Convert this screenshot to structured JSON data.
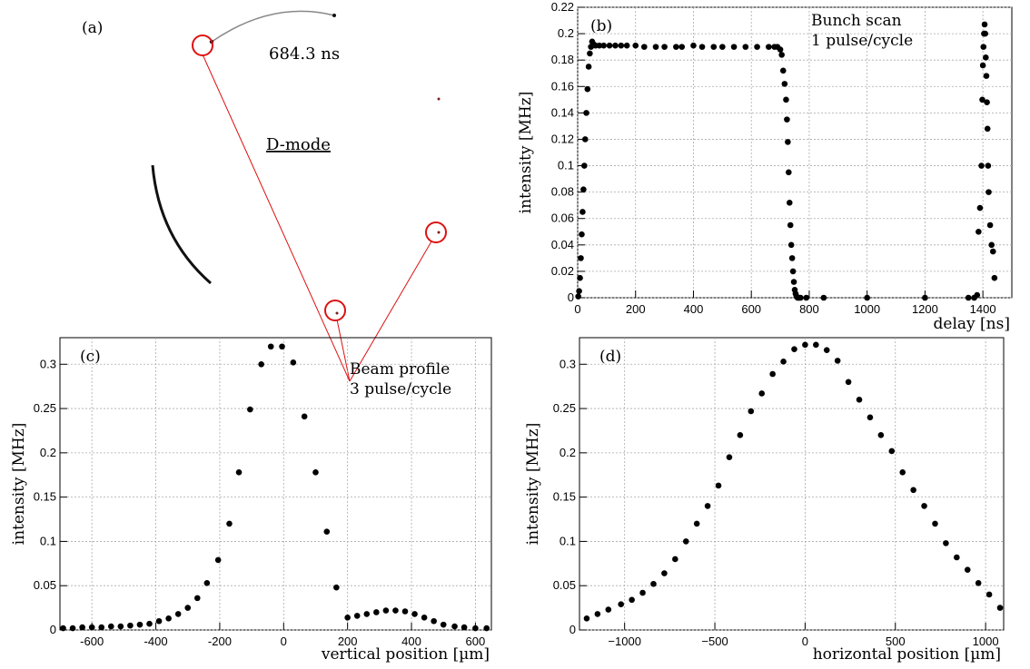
{
  "panel_a": {
    "label": "(a)",
    "time_label": "684.3 ns",
    "mode_label": "D-mode",
    "highlight_color": "#dd1111"
  },
  "chart_data": [
    {
      "id": "b",
      "type": "scatter",
      "panel_label": "(b)",
      "xlabel": "delay [ns]",
      "ylabel": "intensity [MHz]",
      "annotation": [
        "Bunch scan",
        "1 pulse/cycle"
      ],
      "xlim": [
        0,
        1500
      ],
      "ylim": [
        0,
        0.22
      ],
      "xticks": [
        0,
        200,
        400,
        600,
        800,
        1000,
        1200,
        1400
      ],
      "xtick_labels": [
        "0",
        "200",
        "400",
        "600",
        "800",
        "1000",
        "1200",
        "1400"
      ],
      "yticks": [
        0,
        0.02,
        0.04,
        0.06,
        0.08,
        0.1,
        0.12,
        0.14,
        0.16,
        0.18,
        0.2,
        0.22
      ],
      "ytick_labels": [
        "0",
        "0.02",
        "0.04",
        "0.06",
        "0.08",
        "0.1",
        "0.12",
        "0.14",
        "0.16",
        "0.18",
        "0.2",
        "0.22"
      ],
      "grid": true,
      "x": [
        2,
        5,
        8,
        11,
        14,
        17,
        20,
        23,
        26,
        30,
        34,
        38,
        42,
        46,
        50,
        55,
        62,
        75,
        90,
        110,
        130,
        150,
        170,
        200,
        230,
        270,
        300,
        340,
        360,
        400,
        430,
        470,
        500,
        540,
        580,
        620,
        660,
        680,
        690,
        700,
        705,
        710,
        715,
        720,
        723,
        726,
        729,
        732,
        735,
        738,
        741,
        744,
        747,
        750,
        753,
        756,
        760,
        765,
        770,
        790,
        850,
        1000,
        1200,
        1350,
        1370,
        1380,
        1385,
        1390,
        1395,
        1398,
        1400,
        1402,
        1404,
        1406,
        1408,
        1410,
        1412,
        1414,
        1416,
        1418,
        1420,
        1425,
        1430,
        1435,
        1440
      ],
      "y": [
        0.001,
        0.005,
        0.015,
        0.03,
        0.048,
        0.065,
        0.082,
        0.1,
        0.12,
        0.14,
        0.158,
        0.175,
        0.185,
        0.19,
        0.194,
        0.192,
        0.191,
        0.191,
        0.191,
        0.191,
        0.191,
        0.191,
        0.191,
        0.191,
        0.19,
        0.19,
        0.19,
        0.19,
        0.19,
        0.191,
        0.19,
        0.19,
        0.19,
        0.19,
        0.19,
        0.19,
        0.19,
        0.19,
        0.19,
        0.188,
        0.184,
        0.172,
        0.162,
        0.15,
        0.135,
        0.118,
        0.095,
        0.072,
        0.055,
        0.04,
        0.03,
        0.02,
        0.012,
        0.006,
        0.003,
        0.001,
        0.0,
        0.0,
        0.0,
        0.0,
        0.0,
        0.0,
        0.0,
        0.0,
        0.0,
        0.002,
        0.05,
        0.068,
        0.1,
        0.15,
        0.176,
        0.19,
        0.2,
        0.207,
        0.2,
        0.182,
        0.168,
        0.148,
        0.128,
        0.1,
        0.08,
        0.055,
        0.04,
        0.035,
        0.015
      ]
    },
    {
      "id": "c",
      "type": "scatter",
      "panel_label": "(c)",
      "xlabel": "vertical position [µm]",
      "ylabel": "intensity [MHz]",
      "annotation": [
        "Beam profile",
        "3 pulse/cycle"
      ],
      "xlim": [
        -700,
        650
      ],
      "ylim": [
        0,
        0.33
      ],
      "xticks": [
        -600,
        -400,
        -200,
        0,
        200,
        400,
        600
      ],
      "xtick_labels": [
        "-600",
        "-400",
        "-200",
        "0",
        "200",
        "400",
        "600"
      ],
      "yticks": [
        0,
        0.05,
        0.1,
        0.15,
        0.2,
        0.25,
        0.3
      ],
      "ytick_labels": [
        "0",
        "0.05",
        "0.1",
        "0.15",
        "0.2",
        "0.25",
        "0.3"
      ],
      "grid": true,
      "x": [
        -690,
        -660,
        -630,
        -600,
        -570,
        -540,
        -510,
        -480,
        -450,
        -420,
        -390,
        -360,
        -330,
        -300,
        -270,
        -240,
        -205,
        -170,
        -140,
        -105,
        -70,
        -40,
        -5,
        30,
        65,
        100,
        135,
        165,
        200,
        230,
        260,
        290,
        320,
        350,
        380,
        410,
        440,
        470,
        500,
        535,
        565,
        600,
        635
      ],
      "y": [
        0.002,
        0.002,
        0.003,
        0.003,
        0.003,
        0.004,
        0.004,
        0.005,
        0.006,
        0.007,
        0.01,
        0.013,
        0.018,
        0.025,
        0.036,
        0.053,
        0.079,
        0.12,
        0.178,
        0.249,
        0.3,
        0.32,
        0.32,
        0.302,
        0.241,
        0.178,
        0.111,
        0.048,
        0.014,
        0.016,
        0.018,
        0.02,
        0.022,
        0.022,
        0.021,
        0.018,
        0.014,
        0.01,
        0.006,
        0.004,
        0.003,
        0.002,
        0.002
      ]
    },
    {
      "id": "d",
      "type": "scatter",
      "panel_label": "(d)",
      "xlabel": "horizontal position [µm]",
      "ylabel": "intensity [MHz]",
      "xlim": [
        -1250,
        1100
      ],
      "ylim": [
        0,
        0.33
      ],
      "xticks": [
        -1000,
        -500,
        0,
        500,
        1000
      ],
      "xtick_labels": [
        "−1000",
        "−500",
        "0",
        "500",
        "1000"
      ],
      "yticks": [
        0,
        0.05,
        0.1,
        0.15,
        0.2,
        0.25,
        0.3
      ],
      "ytick_labels": [
        "0",
        "0.05",
        "0.1",
        "0.15",
        "0.2",
        "0.25",
        "0.3"
      ],
      "grid": true,
      "x": [
        -1210,
        -1150,
        -1090,
        -1020,
        -960,
        -900,
        -840,
        -780,
        -720,
        -660,
        -600,
        -540,
        -480,
        -420,
        -360,
        -300,
        -240,
        -180,
        -120,
        -60,
        0,
        60,
        120,
        180,
        240,
        300,
        360,
        420,
        480,
        540,
        600,
        660,
        720,
        780,
        840,
        900,
        960,
        1020,
        1080
      ],
      "y": [
        0.013,
        0.018,
        0.023,
        0.029,
        0.034,
        0.042,
        0.052,
        0.064,
        0.08,
        0.1,
        0.12,
        0.14,
        0.163,
        0.195,
        0.22,
        0.247,
        0.267,
        0.289,
        0.303,
        0.317,
        0.322,
        0.322,
        0.316,
        0.304,
        0.28,
        0.26,
        0.24,
        0.22,
        0.202,
        0.178,
        0.158,
        0.14,
        0.12,
        0.098,
        0.082,
        0.068,
        0.053,
        0.04,
        0.025
      ]
    }
  ]
}
